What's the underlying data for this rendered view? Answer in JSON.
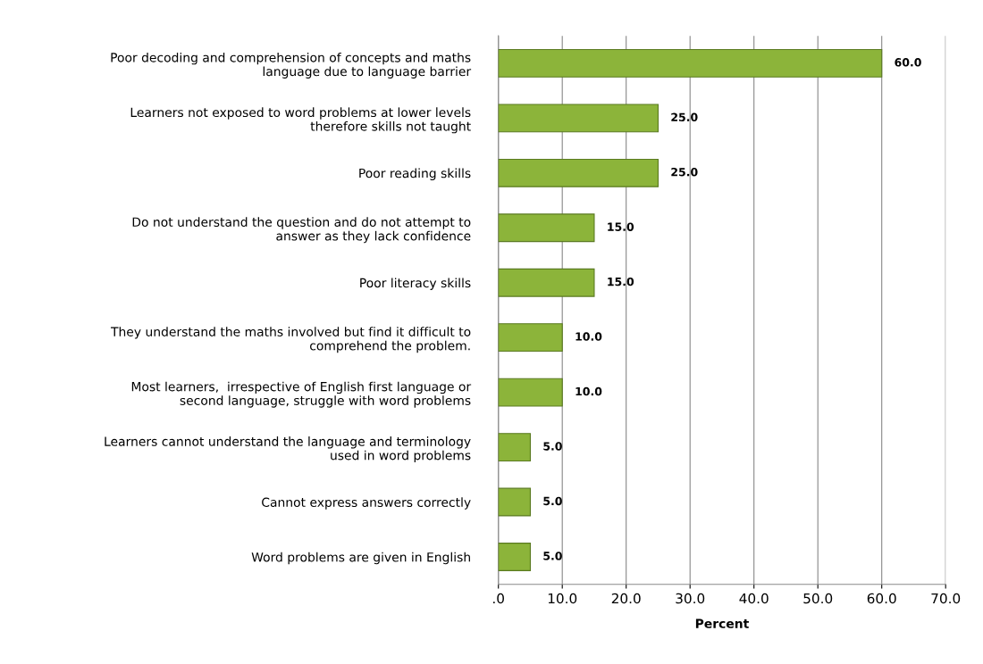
{
  "chart_data": {
    "type": "bar",
    "orientation": "horizontal",
    "xlabel": "Percent",
    "categories": [
      "Poor decoding and comprehension of concepts and maths\nlanguage due to language barrier",
      "Learners not exposed to word problems at lower levels\ntherefore skills not taught",
      "Poor reading skills",
      "Do not understand the question and do not attempt to\nanswer as they lack confidence",
      "Poor literacy skills",
      "They understand the maths involved but find it difficult to\ncomprehend the problem.",
      "Most learners,  irrespective of English first language or\nsecond language, struggle with word problems",
      "Learners cannot understand the language and terminology\nused in word problems",
      "Cannot express answers correctly",
      "Word problems are given in English"
    ],
    "values": [
      60,
      25,
      25,
      15,
      15,
      10,
      10,
      5,
      5,
      5
    ],
    "value_labels": [
      "60.0",
      "25.0",
      "25.0",
      "15.0",
      "15.0",
      "10.0",
      "10.0",
      "5.0",
      "5.0",
      "5.0"
    ],
    "color": "#8cb43a",
    "xlim": [
      0,
      70
    ],
    "xticks": [
      {
        "value": 0,
        "label": ".0"
      },
      {
        "value": 10,
        "label": "10.0"
      },
      {
        "value": 20,
        "label": "20.0"
      },
      {
        "value": 30,
        "label": "30.0"
      },
      {
        "value": 40,
        "label": "40.0"
      },
      {
        "value": 50,
        "label": "50.0"
      },
      {
        "value": 60,
        "label": "60.0"
      },
      {
        "value": 70,
        "label": "70.0"
      }
    ],
    "grid": "x"
  }
}
